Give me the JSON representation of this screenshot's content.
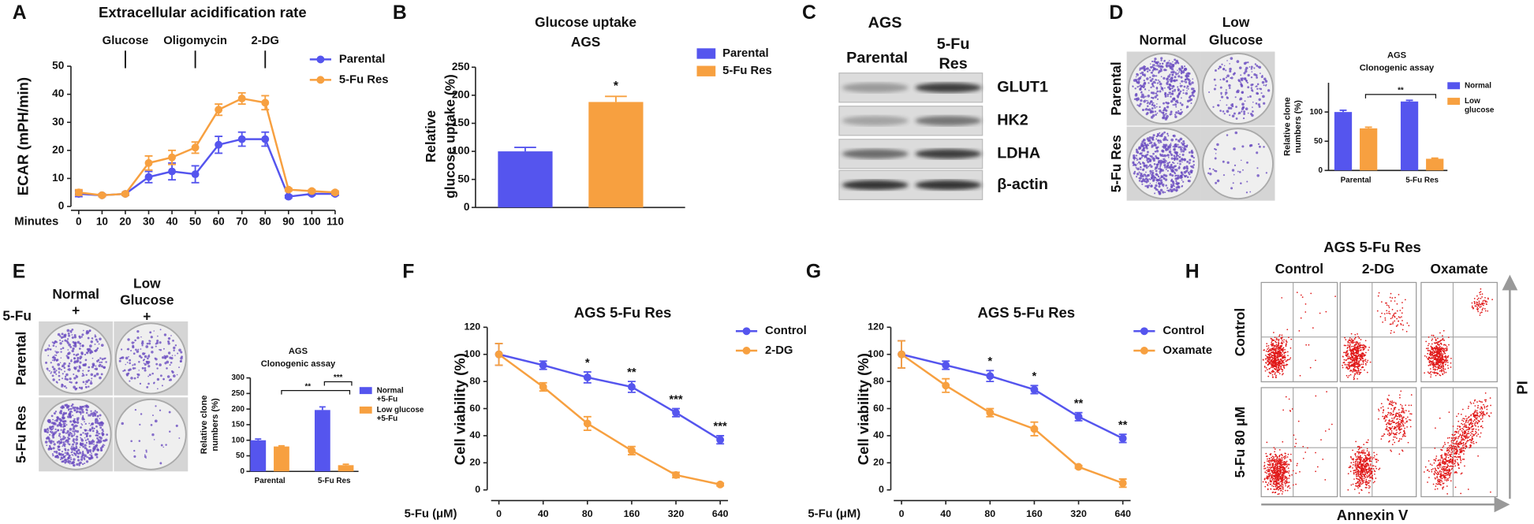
{
  "panel_labels": [
    "A",
    "B",
    "C",
    "D",
    "E",
    "F",
    "G",
    "H"
  ],
  "chart_data": [
    {
      "type": "line",
      "title": "Extracellular acidification rate",
      "ylabel": "ECAR (mPH/min)",
      "xlabel": "Minutes",
      "x": [
        0,
        10,
        20,
        30,
        40,
        50,
        60,
        70,
        80,
        90,
        100,
        110
      ],
      "xlim": [
        0,
        110
      ],
      "xticks": [
        0,
        10,
        20,
        30,
        40,
        50,
        60,
        70,
        80,
        90,
        100,
        110
      ],
      "ylim": [
        0,
        50
      ],
      "yticks": [
        0,
        10,
        20,
        30,
        40,
        50
      ],
      "annotations": [
        {
          "text": "Glucose",
          "x": 20
        },
        {
          "text": "Oligomycin",
          "x": 50
        },
        {
          "text": "2-DG",
          "x": 80
        }
      ],
      "series": [
        {
          "name": "Parental",
          "color": "#5555ee",
          "values": [
            4.5,
            4,
            4.5,
            10.5,
            12.5,
            11.5,
            22,
            24,
            24,
            3.5,
            4.5,
            4.5
          ],
          "errors": [
            1,
            0.5,
            0.5,
            2,
            3,
            3,
            3,
            2.5,
            2.5,
            0.5,
            0.5,
            0.5
          ]
        },
        {
          "name": "5-Fu Res",
          "color": "#f7a040",
          "values": [
            5,
            4,
            4.5,
            15.5,
            17.5,
            21,
            34.5,
            38.5,
            37,
            6,
            5.5,
            5
          ],
          "errors": [
            1,
            0.5,
            0.5,
            2.5,
            2.5,
            2,
            2,
            2,
            2.5,
            0.5,
            0.5,
            0.5
          ]
        }
      ]
    },
    {
      "type": "bar",
      "title": [
        "Glucose uptake",
        "AGS"
      ],
      "ylabel": [
        "Relative",
        "glucose uptake (%)"
      ],
      "categories": [
        null
      ],
      "ylim": [
        0,
        250
      ],
      "yticks": [
        0,
        50,
        100,
        150,
        200,
        250
      ],
      "annotation": "*",
      "series": [
        {
          "name": "Parental",
          "color": "#5555ee",
          "values": [
            100
          ],
          "errors": [
            7
          ]
        },
        {
          "name": "5-Fu Res",
          "color": "#f7a040",
          "values": [
            188
          ],
          "errors": [
            10
          ]
        }
      ]
    },
    {
      "type": "bar",
      "title": [
        "AGS",
        "Clonogenic assay"
      ],
      "ylabel": [
        "Relative clone",
        "numbers (%)"
      ],
      "categories": [
        "Parental",
        "5-Fu Res"
      ],
      "ylim": [
        0,
        150
      ],
      "yticks": [
        0,
        50,
        100
      ],
      "brackets": [
        "**"
      ],
      "series": [
        {
          "name": "Normal",
          "color": "#5555ee",
          "values": [
            100,
            118
          ],
          "errors": [
            3,
            2
          ]
        },
        {
          "name": [
            "Low",
            "glucose"
          ],
          "color": "#f7a040",
          "values": [
            72,
            20
          ],
          "errors": [
            2,
            1
          ]
        }
      ]
    },
    {
      "type": "bar",
      "title": [
        "AGS",
        "Clonogenic assay"
      ],
      "ylabel": [
        "Relative clone",
        "numbers (%)"
      ],
      "categories": [
        "Parental",
        "5-Fu Res"
      ],
      "ylim": [
        0,
        300
      ],
      "yticks": [
        0,
        50,
        100,
        150,
        200,
        250,
        300
      ],
      "brackets": [
        "**",
        "***"
      ],
      "series": [
        {
          "name": [
            "Normal",
            "+5-Fu"
          ],
          "color": "#5555ee",
          "values": [
            100,
            197
          ],
          "errors": [
            4,
            10
          ]
        },
        {
          "name": [
            "Low glucose",
            "+5-Fu"
          ],
          "color": "#f7a040",
          "values": [
            80,
            20
          ],
          "errors": [
            2,
            3
          ]
        }
      ]
    },
    {
      "type": "line",
      "title": "AGS 5-Fu Res",
      "ylabel": "Cell viability (%)",
      "xlabel": "5-Fu (μM)",
      "categories": [
        "0",
        "40",
        "80",
        "160",
        "320",
        "640"
      ],
      "ylim": [
        0,
        120
      ],
      "yticks": [
        0,
        20,
        40,
        60,
        80,
        100,
        120
      ],
      "sig_labels": [
        null,
        null,
        "*",
        "**",
        "***",
        "***"
      ],
      "series": [
        {
          "name": "Control",
          "color": "#5555ee",
          "values": [
            100,
            92,
            83,
            76,
            57,
            37
          ],
          "errors": [
            8,
            3,
            4,
            4,
            3,
            3
          ]
        },
        {
          "name": "2-DG",
          "color": "#f7a040",
          "values": [
            100,
            76,
            49,
            29,
            11,
            4
          ],
          "errors": [
            8,
            3,
            5,
            3,
            2,
            1
          ]
        }
      ]
    },
    {
      "type": "line",
      "title": "AGS 5-Fu Res",
      "ylabel": "Cell viability (%)",
      "xlabel": "5-Fu (μM)",
      "categories": [
        "0",
        "40",
        "80",
        "160",
        "320",
        "640"
      ],
      "ylim": [
        0,
        120
      ],
      "yticks": [
        0,
        20,
        40,
        60,
        80,
        100,
        120
      ],
      "sig_labels": [
        null,
        null,
        "*",
        "*",
        "**",
        "**"
      ],
      "series": [
        {
          "name": "Control",
          "color": "#5555ee",
          "values": [
            100,
            92,
            84,
            74,
            54,
            38
          ],
          "errors": [
            10,
            3,
            4,
            3,
            3,
            3
          ]
        },
        {
          "name": "Oxamate",
          "color": "#f7a040",
          "values": [
            100,
            77,
            57,
            45,
            17,
            5
          ],
          "errors": [
            10,
            5,
            3,
            5,
            1,
            3
          ]
        }
      ]
    }
  ],
  "blot": {
    "title": "AGS",
    "columns": [
      [
        "Parental"
      ],
      [
        "5-Fu",
        "Res"
      ]
    ],
    "rows": [
      "GLUT1",
      "HK2",
      "LDHA",
      "β-actin"
    ]
  },
  "plates_d": {
    "columns": [
      [
        "Normal"
      ],
      [
        "Low",
        "Glucose"
      ]
    ],
    "rows": [
      "Parental",
      "5-Fu Res"
    ]
  },
  "plates_e": {
    "columns": [
      [
        "Normal",
        "+"
      ],
      [
        "Low",
        "Glucose",
        "+"
      ]
    ],
    "treatment": "5-Fu",
    "rows": [
      "Parental",
      "5-Fu Res"
    ]
  },
  "flow": {
    "title": "AGS 5-Fu Res",
    "columns": [
      "Control",
      "2-DG",
      "Oxamate"
    ],
    "rows": [
      "Control",
      "5-Fu 80 μM"
    ],
    "xlabel": "Annexin V",
    "ylabel": "PI"
  }
}
